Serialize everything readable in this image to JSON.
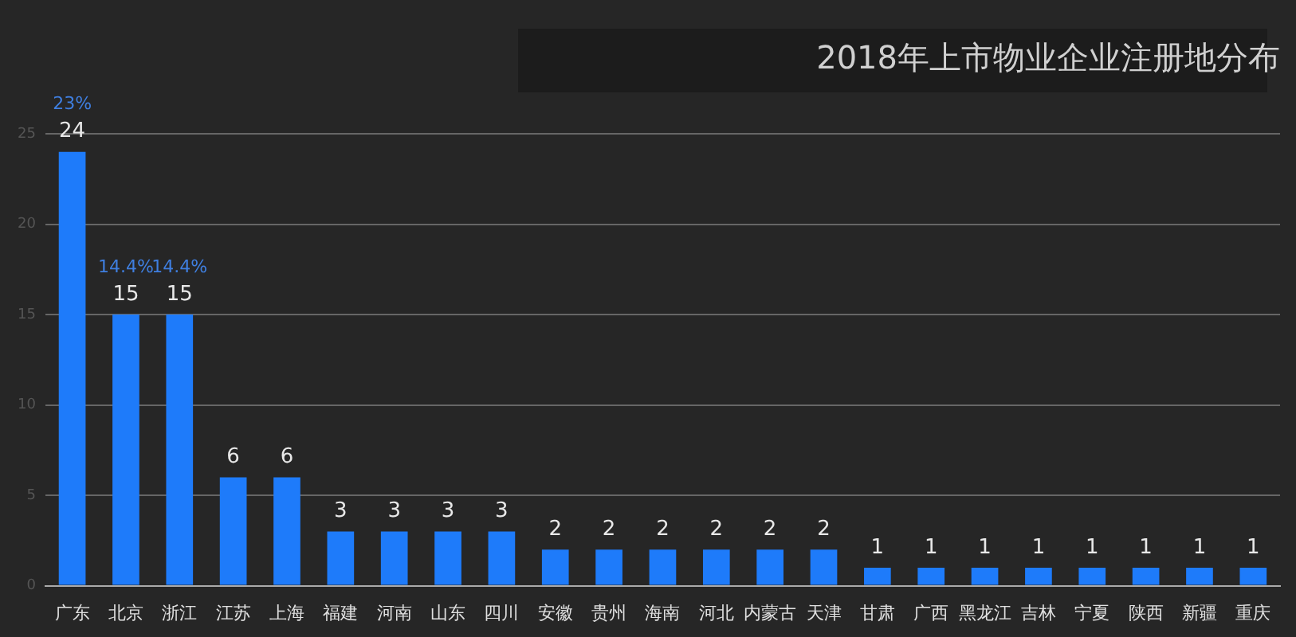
{
  "chart_data": {
    "type": "bar",
    "title": "2018年上市物业企业注册地分布",
    "categories": [
      "广东",
      "北京",
      "浙江",
      "江苏",
      "上海",
      "福建",
      "河南",
      "山东",
      "四川",
      "安徽",
      "贵州",
      "海南",
      "河北",
      "内蒙古",
      "天津",
      "甘肃",
      "广西",
      "黑龙江",
      "吉林",
      "宁夏",
      "陕西",
      "新疆",
      "重庆"
    ],
    "values": [
      24,
      15,
      15,
      6,
      6,
      3,
      3,
      3,
      3,
      2,
      2,
      2,
      2,
      2,
      2,
      1,
      1,
      1,
      1,
      1,
      1,
      1,
      1
    ],
    "color": "#1e7bfa",
    "ylim": [
      0,
      25
    ],
    "yticks": [
      0,
      5,
      10,
      15,
      20,
      25
    ],
    "grid": "y",
    "data_labels": true,
    "annotations": [
      {
        "text": "23%",
        "x": "广东",
        "y": 24
      },
      {
        "text": "14.4%",
        "x": "北京",
        "y": 15
      },
      {
        "text": "14.4%",
        "x": "浙江",
        "y": 15
      }
    ]
  }
}
